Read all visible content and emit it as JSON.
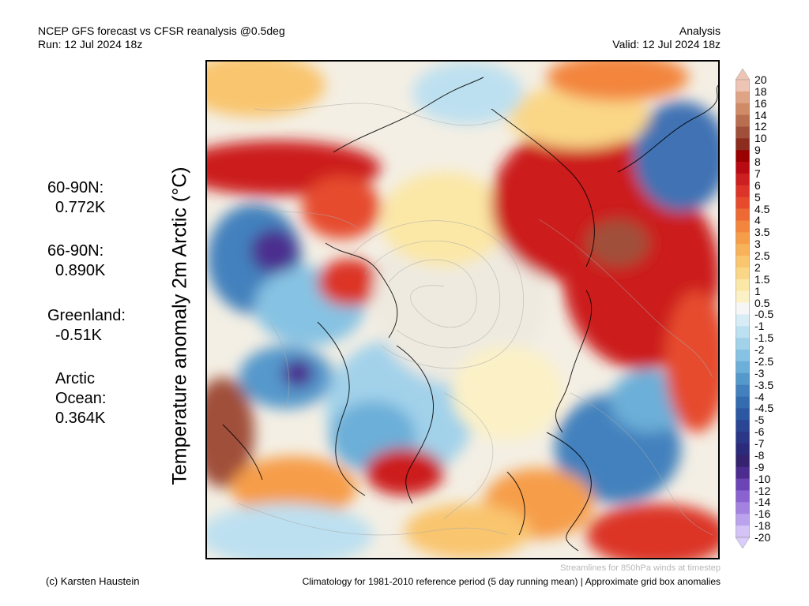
{
  "header": {
    "title_left": "NCEP GFS forecast vs CFSR reanalysis @0.5deg",
    "run": "Run: 12 Jul 2024 18z",
    "title_right": "Analysis",
    "valid": "Valid: 12 Jul 2024 18z"
  },
  "ylabel": "Temperature anomaly 2m Arctic (°C)",
  "stats": [
    {
      "label": "60-90N:",
      "value": "0.772K"
    },
    {
      "label": "66-90N:",
      "value": "0.890K"
    },
    {
      "label": "Greenland:",
      "value": "-0.51K"
    },
    {
      "label": "Arctic",
      "label2": "Ocean:",
      "value": "0.364K"
    }
  ],
  "colorbar": {
    "labels": [
      "20",
      "18",
      "16",
      "14",
      "12",
      "10",
      "9",
      "8",
      "7",
      "6",
      "5",
      "4.5",
      "4",
      "3.5",
      "3",
      "2.5",
      "2",
      "1.5",
      "1",
      "0.5",
      "-0.5",
      "-1",
      "-1.5",
      "-2",
      "-2.5",
      "-3",
      "-3.5",
      "-4",
      "-4.5",
      "-5",
      "-6",
      "-7",
      "-8",
      "-9",
      "-10",
      "-12",
      "-14",
      "-16",
      "-18",
      "-20"
    ],
    "colors": [
      "#eec4b4",
      "#dfa486",
      "#cf8a66",
      "#b96e4f",
      "#a0503a",
      "#8c2c1e",
      "#9a0000",
      "#b80a12",
      "#cc1f1f",
      "#dc3428",
      "#e64b2e",
      "#ee6a34",
      "#f3853c",
      "#f69d4a",
      "#f8b25a",
      "#f9c56e",
      "#fad787",
      "#fbe7a6",
      "#fcf1c6",
      "#f6f6f6",
      "#d8ecf6",
      "#bde0f0",
      "#a2d2ea",
      "#86c2e3",
      "#6cafd8",
      "#5598cb",
      "#4281bd",
      "#356cb0",
      "#2c58a2",
      "#2a4594",
      "#2a3686",
      "#2c2a7a",
      "#35236f",
      "#4c2d8f",
      "#6b45b5",
      "#8b63d0",
      "#a382e0",
      "#bba2ec",
      "#d4c3f6"
    ]
  },
  "footer": {
    "credit": "(c) Karsten Haustein",
    "streamlines": "Streamlines for 850hPa winds at timestep",
    "climatology": "Climatology for 1981-2010 reference period (5 day running mean) | Approximate grid box anomalies"
  }
}
